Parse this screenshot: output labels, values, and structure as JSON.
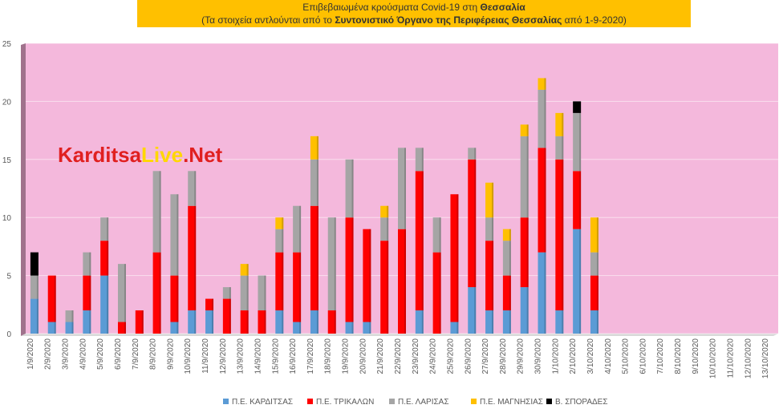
{
  "title": {
    "line1_prefix": "Επιβεβαιωμένα κρούσματα Covid-19 στη ",
    "line1_bold": "Θεσσαλία",
    "line2_prefix": "(Τα στοιχεία αντλούνται από το ",
    "line2_bold": "Συντονιστικό Όργανο της Περιφέρειας Θεσσαλίας",
    "line2_suffix": " από 1-9-2020)"
  },
  "watermark": {
    "part1": "Karditsa",
    "part2": "Live",
    "part3": ".Net"
  },
  "colors": {
    "background": "#f4b8dc",
    "karditsa": "#5b9bd5",
    "trikala": "#ff0000",
    "larisa": "#a5a5a5",
    "magnisia": "#ffc000",
    "sporades": "#000000",
    "watermark_main": "#e02020",
    "watermark_accent": "#ffd700"
  },
  "chart_data": {
    "type": "bar",
    "stacked": true,
    "ylim": [
      0,
      25
    ],
    "yticks": [
      0,
      5,
      10,
      15,
      20,
      25
    ],
    "grid": true,
    "legend_position": "bottom",
    "categories": [
      "1/9/2020",
      "2/9/2020",
      "3/9/2020",
      "4/9/2020",
      "5/9/2020",
      "6/9/2020",
      "7/9/2020",
      "8/9/2020",
      "9/9/2020",
      "10/9/2020",
      "11/9/2020",
      "12/9/2020",
      "13/9/2020",
      "14/9/2020",
      "15/9/2020",
      "16/9/2020",
      "17/9/2020",
      "18/9/2020",
      "19/9/2020",
      "20/9/2020",
      "21/9/2020",
      "22/9/2020",
      "23/9/2020",
      "24/9/2020",
      "25/9/2020",
      "26/9/2020",
      "27/9/2020",
      "28/9/2020",
      "29/9/2020",
      "30/9/2020",
      "1/10/2020",
      "2/10/2020",
      "3/10/2020",
      "4/10/2020",
      "5/10/2020",
      "6/10/2020",
      "7/10/2020",
      "8/10/2020",
      "9/10/2020",
      "10/10/2020",
      "11/10/2020",
      "12/10/2020",
      "13/10/2020"
    ],
    "series": [
      {
        "name": "Π.Ε. ΚΑΡΔΙΤΣΑΣ",
        "key": "karditsa",
        "values": [
          3,
          1,
          1,
          2,
          5,
          0,
          0,
          0,
          1,
          2,
          2,
          0,
          0,
          0,
          2,
          1,
          2,
          0,
          1,
          1,
          0,
          0,
          2,
          0,
          1,
          4,
          2,
          2,
          4,
          7,
          2,
          9,
          2,
          0,
          0,
          0,
          0,
          0,
          0,
          0,
          0,
          0,
          0
        ]
      },
      {
        "name": "Π.Ε. ΤΡΙΚΑΛΩΝ",
        "key": "trikala",
        "values": [
          0,
          4,
          0,
          3,
          3,
          1,
          2,
          7,
          4,
          9,
          1,
          3,
          2,
          2,
          5,
          6,
          9,
          2,
          9,
          8,
          8,
          9,
          12,
          7,
          11,
          11,
          6,
          3,
          6,
          9,
          13,
          5,
          3,
          0,
          0,
          0,
          0,
          0,
          0,
          0,
          0,
          0,
          0
        ]
      },
      {
        "name": "Π.Ε. ΛΑΡΙΣΑΣ",
        "key": "larisa",
        "values": [
          2,
          0,
          1,
          2,
          2,
          5,
          0,
          7,
          7,
          3,
          0,
          1,
          3,
          3,
          2,
          4,
          4,
          8,
          5,
          0,
          2,
          7,
          2,
          3,
          0,
          1,
          2,
          3,
          7,
          5,
          2,
          5,
          2,
          0,
          0,
          0,
          0,
          0,
          0,
          0,
          0,
          0,
          0
        ]
      },
      {
        "name": "Π.Ε. ΜΑΓΝΗΣΙΑΣ",
        "key": "magnisia",
        "values": [
          0,
          0,
          0,
          0,
          0,
          0,
          0,
          0,
          0,
          0,
          0,
          0,
          1,
          0,
          1,
          0,
          2,
          0,
          0,
          0,
          1,
          0,
          0,
          0,
          0,
          0,
          3,
          1,
          1,
          1,
          2,
          0,
          3,
          0,
          0,
          0,
          0,
          0,
          0,
          0,
          0,
          0,
          0
        ]
      },
      {
        "name": "Β. ΣΠΟΡΑΔΕΣ",
        "key": "sporades",
        "values": [
          2,
          0,
          0,
          0,
          0,
          0,
          0,
          0,
          0,
          0,
          0,
          0,
          0,
          0,
          0,
          0,
          0,
          0,
          0,
          0,
          0,
          0,
          0,
          0,
          0,
          0,
          0,
          0,
          0,
          0,
          0,
          1,
          0,
          0,
          0,
          0,
          0,
          0,
          0,
          0,
          0,
          0,
          0
        ]
      }
    ]
  }
}
